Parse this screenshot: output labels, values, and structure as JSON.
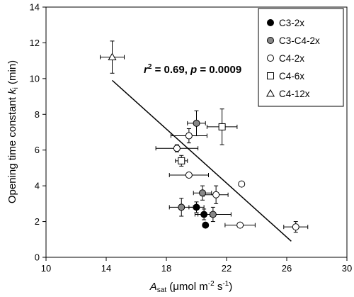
{
  "chart_data": {
    "type": "scatter",
    "title": "",
    "xlabel": "",
    "xlabel_parts": {
      "main": "A",
      "sub": "sat",
      "unit": " (μmol m",
      "exp1": "-2",
      "mid": " s",
      "exp2": "-1",
      "close": ")"
    },
    "ylabel": "",
    "ylabel_parts": {
      "main": "Opening time constant ",
      "k": "k",
      "sub": "i",
      "unit": " (min)"
    },
    "xlim": [
      10,
      30
    ],
    "ylim": [
      0,
      14
    ],
    "xticks": [
      10,
      14,
      18,
      22,
      26,
      30
    ],
    "yticks": [
      0,
      2,
      4,
      6,
      8,
      10,
      12,
      14
    ],
    "grid": false,
    "legend_position": "top-right",
    "annotation": {
      "r": "r",
      "sq": "2",
      "text": " = 0.69, ",
      "p": "p",
      "ptext": " = 0.0009"
    },
    "regression": {
      "x1": 14.4,
      "y1": 9.9,
      "x2": 26.3,
      "y2": 0.9
    },
    "series": [
      {
        "name": "C3-2x",
        "marker": "circle",
        "fill": "#000000",
        "points": [
          {
            "x": 20.0,
            "y": 2.8,
            "xerr": 0.5,
            "yerr": 0.3
          },
          {
            "x": 20.5,
            "y": 2.4,
            "xerr": 0.4,
            "yerr": 0.3
          },
          {
            "x": 20.6,
            "y": 1.8,
            "xerr": 0,
            "yerr": 0
          }
        ]
      },
      {
        "name": "C3-C4-2x",
        "marker": "circle",
        "fill": "#888888",
        "points": [
          {
            "x": 20.0,
            "y": 7.5,
            "xerr": 0.6,
            "yerr": 0.7
          },
          {
            "x": 20.4,
            "y": 3.6,
            "xerr": 0.6,
            "yerr": 0.4
          },
          {
            "x": 19.0,
            "y": 2.8,
            "xerr": 0.8,
            "yerr": 0.5
          },
          {
            "x": 21.1,
            "y": 2.4,
            "xerr": 1.2,
            "yerr": 0.4
          }
        ]
      },
      {
        "name": "C4-2x",
        "marker": "circle",
        "fill": "#ffffff",
        "points": [
          {
            "x": 19.5,
            "y": 6.8,
            "xerr": 1.2,
            "yerr": 0.4
          },
          {
            "x": 18.7,
            "y": 6.1,
            "xerr": 1.4,
            "yerr": 0.2
          },
          {
            "x": 19.5,
            "y": 4.6,
            "xerr": 1.3,
            "yerr": 0
          },
          {
            "x": 21.3,
            "y": 3.5,
            "xerr": 0.8,
            "yerr": 0.5
          },
          {
            "x": 23.0,
            "y": 4.1,
            "xerr": 0,
            "yerr": 0
          },
          {
            "x": 22.9,
            "y": 1.8,
            "xerr": 1.0,
            "yerr": 0
          },
          {
            "x": 26.6,
            "y": 1.7,
            "xerr": 0.8,
            "yerr": 0.3
          }
        ]
      },
      {
        "name": "C4-6x",
        "marker": "square",
        "fill": "#ffffff",
        "points": [
          {
            "x": 21.7,
            "y": 7.3,
            "xerr": 1.0,
            "yerr": 1.0
          },
          {
            "x": 19.0,
            "y": 5.4,
            "xerr": 0.4,
            "yerr": 0.3
          }
        ]
      },
      {
        "name": "C4-12x",
        "marker": "triangle",
        "fill": "#ffffff",
        "points": [
          {
            "x": 14.4,
            "y": 11.2,
            "xerr": 0.8,
            "yerr": 0.9
          }
        ]
      }
    ]
  }
}
